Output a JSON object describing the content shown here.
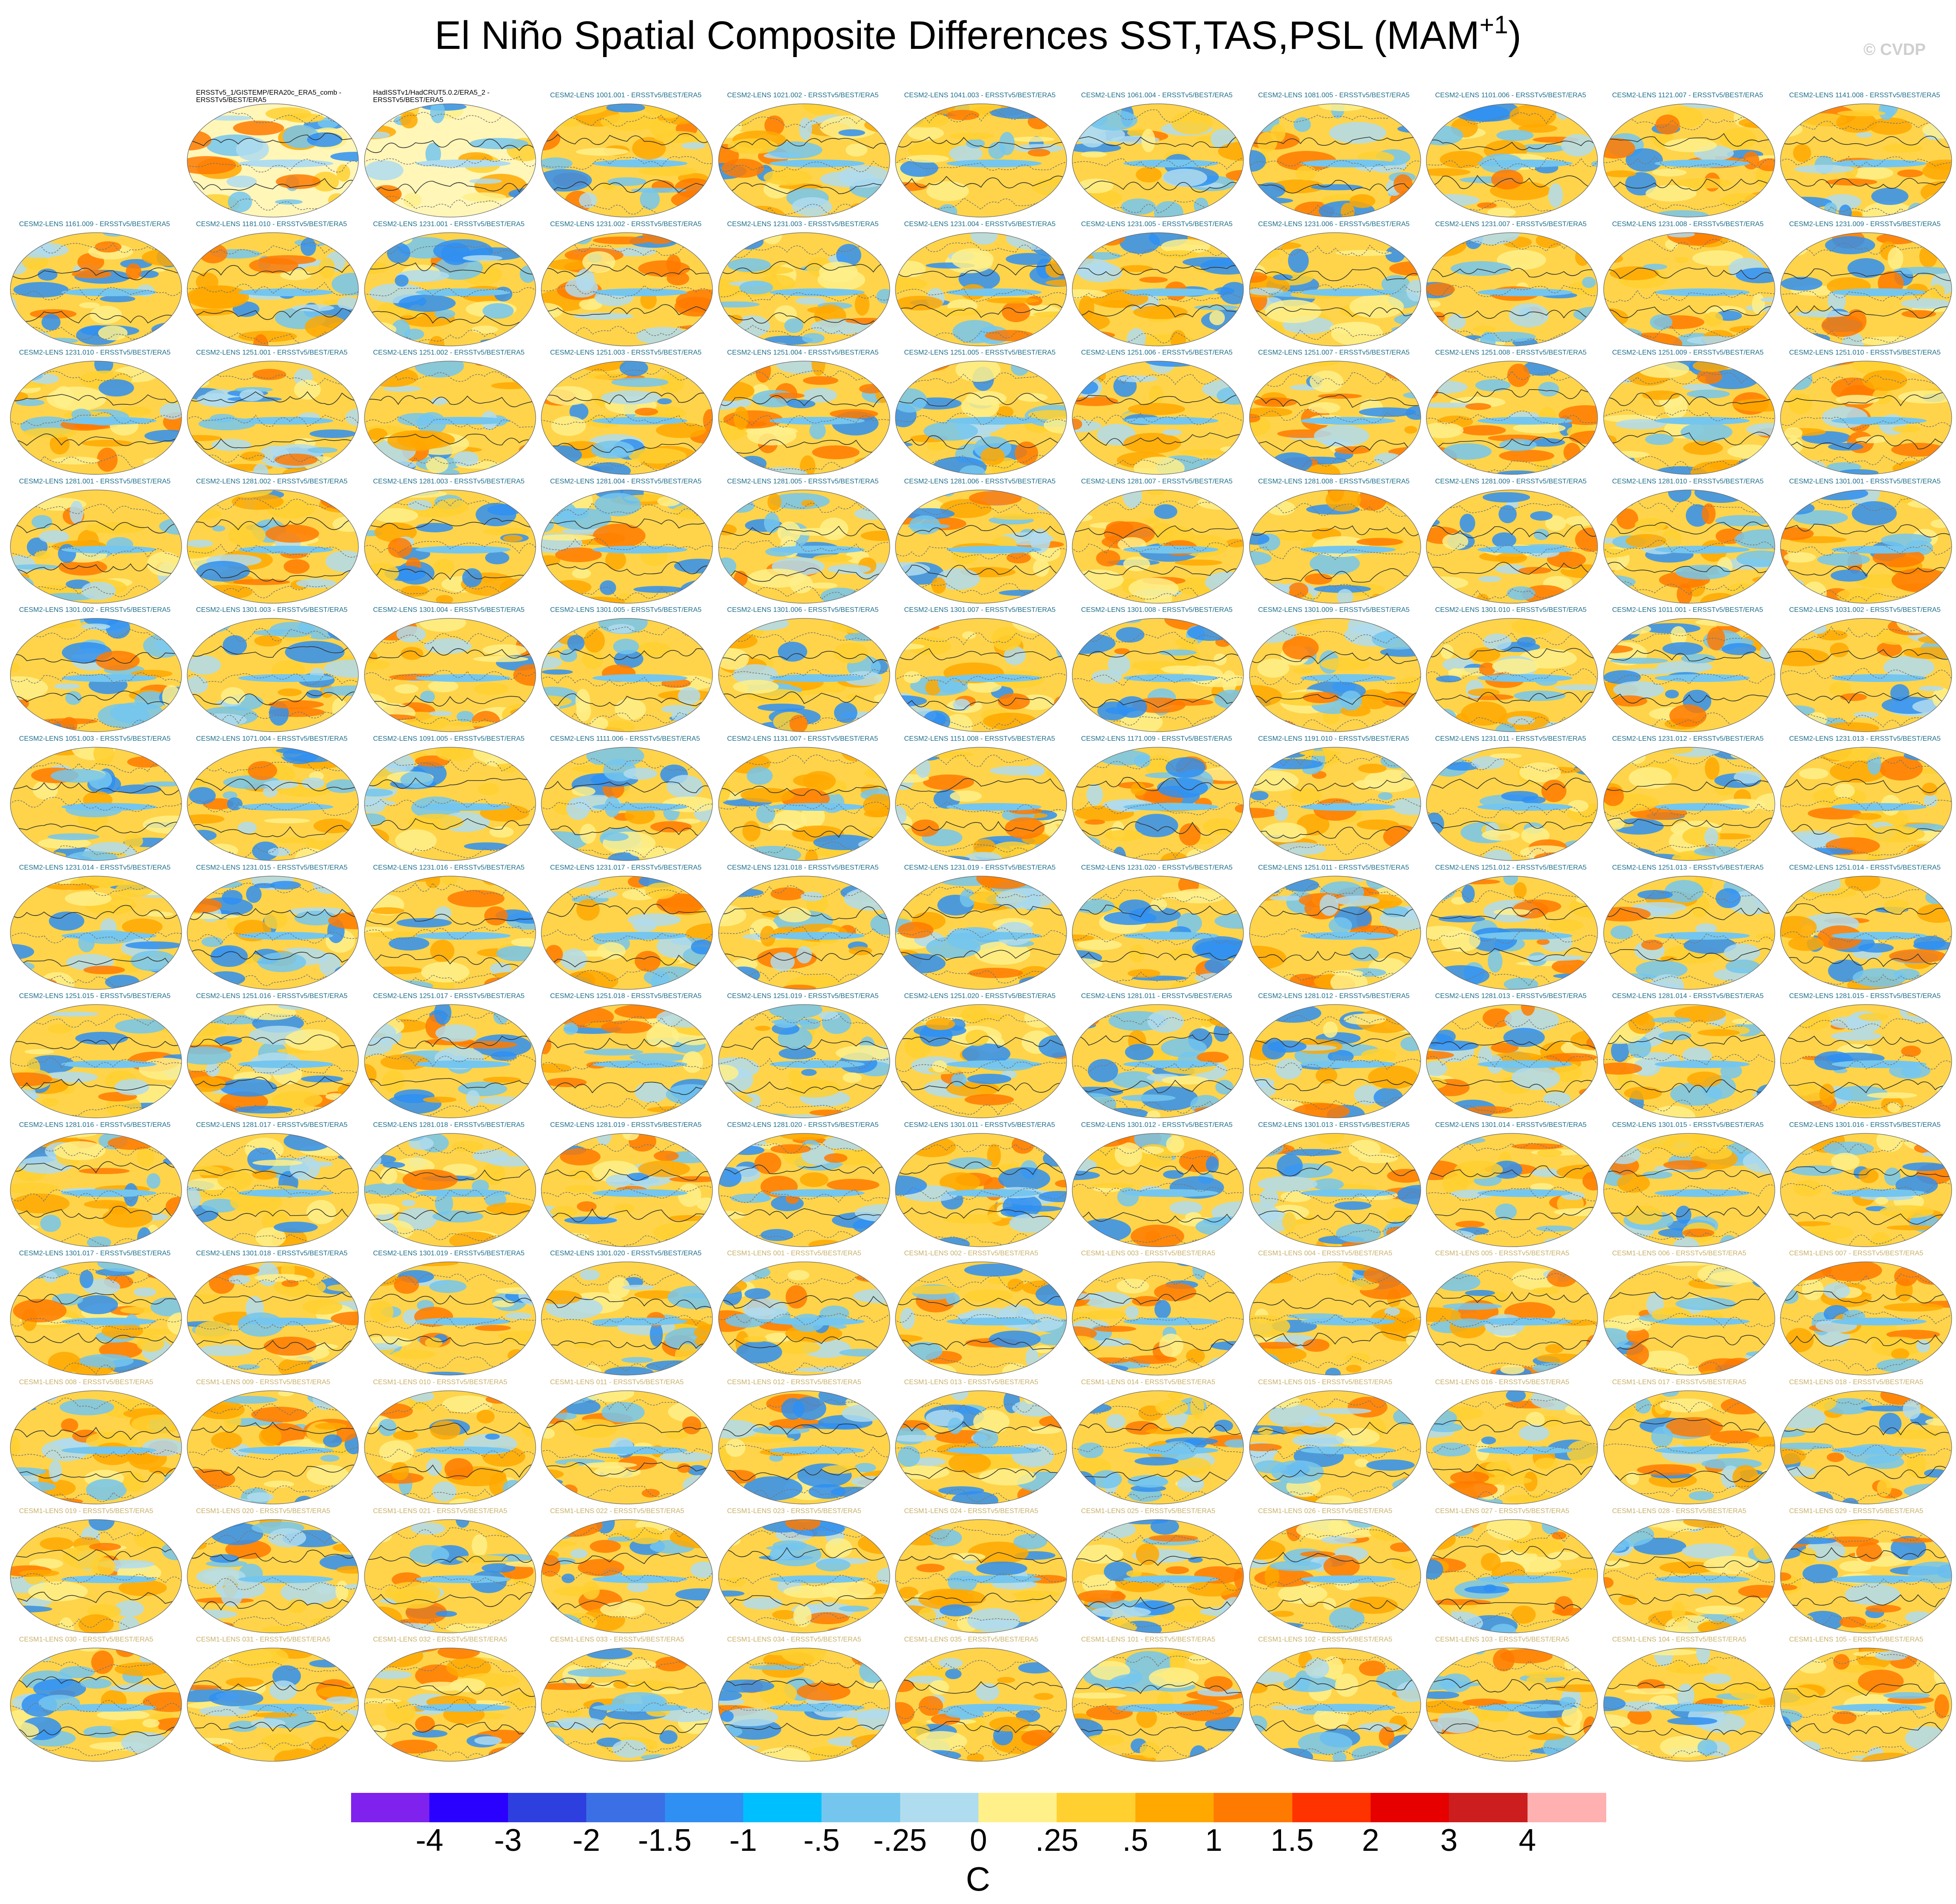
{
  "title": {
    "main": "El Niño Spatial Composite Differences SST,TAS,PSL (MAM",
    "superscript": "+1",
    "close": ")"
  },
  "credit": "© CVDP",
  "units": "C",
  "colorbar": {
    "labels": [
      "-4",
      "-3",
      "-2",
      "-1.5",
      "-1",
      "-.5",
      "-.25",
      "0",
      ".25",
      ".5",
      "1",
      "1.5",
      "2",
      "3",
      "4"
    ],
    "colors": [
      "#7f22ee",
      "#2a00ff",
      "#2e3fe0",
      "#3b6fe6",
      "#2f8ff2",
      "#00bfff",
      "#74c6ef",
      "#b0dcef",
      "#fff08a",
      "#ffd030",
      "#ffa800",
      "#ff7a00",
      "#ff3300",
      "#e60000",
      "#cc1e1e",
      "#ffb0b0"
    ]
  },
  "panels": [
    "",
    "ERSSTv5_1/GISTEMP/ERA20c_ERA5_comb - ERSSTv5/BEST/ERA5",
    "HadISSTv1/HadCRUT5.0.2/ERA5_2 - ERSSTv5/BEST/ERA5",
    "CESM2-LENS 1001.001 - ERSSTv5/BEST/ERA5",
    "CESM2-LENS 1021.002 - ERSSTv5/BEST/ERA5",
    "CESM2-LENS 1041.003 - ERSSTv5/BEST/ERA5",
    "CESM2-LENS 1061.004 - ERSSTv5/BEST/ERA5",
    "CESM2-LENS 1081.005 - ERSSTv5/BEST/ERA5",
    "CESM2-LENS 1101.006 - ERSSTv5/BEST/ERA5",
    "CESM2-LENS 1121.007 - ERSSTv5/BEST/ERA5",
    "CESM2-LENS 1141.008 - ERSSTv5/BEST/ERA5",
    "CESM2-LENS 1161.009 - ERSSTv5/BEST/ERA5",
    "CESM2-LENS 1181.010 - ERSSTv5/BEST/ERA5",
    "CESM2-LENS 1231.001 - ERSSTv5/BEST/ERA5",
    "CESM2-LENS 1231.002 - ERSSTv5/BEST/ERA5",
    "CESM2-LENS 1231.003 - ERSSTv5/BEST/ERA5",
    "CESM2-LENS 1231.004 - ERSSTv5/BEST/ERA5",
    "CESM2-LENS 1231.005 - ERSSTv5/BEST/ERA5",
    "CESM2-LENS 1231.006 - ERSSTv5/BEST/ERA5",
    "CESM2-LENS 1231.007 - ERSSTv5/BEST/ERA5",
    "CESM2-LENS 1231.008 - ERSSTv5/BEST/ERA5",
    "CESM2-LENS 1231.009 - ERSSTv5/BEST/ERA5",
    "CESM2-LENS 1231.010 - ERSSTv5/BEST/ERA5",
    "CESM2-LENS 1251.001 - ERSSTv5/BEST/ERA5",
    "CESM2-LENS 1251.002 - ERSSTv5/BEST/ERA5",
    "CESM2-LENS 1251.003 - ERSSTv5/BEST/ERA5",
    "CESM2-LENS 1251.004 - ERSSTv5/BEST/ERA5",
    "CESM2-LENS 1251.005 - ERSSTv5/BEST/ERA5",
    "CESM2-LENS 1251.006 - ERSSTv5/BEST/ERA5",
    "CESM2-LENS 1251.007 - ERSSTv5/BEST/ERA5",
    "CESM2-LENS 1251.008 - ERSSTv5/BEST/ERA5",
    "CESM2-LENS 1251.009 - ERSSTv5/BEST/ERA5",
    "CESM2-LENS 1251.010 - ERSSTv5/BEST/ERA5",
    "CESM2-LENS 1281.001 - ERSSTv5/BEST/ERA5",
    "CESM2-LENS 1281.002 - ERSSTv5/BEST/ERA5",
    "CESM2-LENS 1281.003 - ERSSTv5/BEST/ERA5",
    "CESM2-LENS 1281.004 - ERSSTv5/BEST/ERA5",
    "CESM2-LENS 1281.005 - ERSSTv5/BEST/ERA5",
    "CESM2-LENS 1281.006 - ERSSTv5/BEST/ERA5",
    "CESM2-LENS 1281.007 - ERSSTv5/BEST/ERA5",
    "CESM2-LENS 1281.008 - ERSSTv5/BEST/ERA5",
    "CESM2-LENS 1281.009 - ERSSTv5/BEST/ERA5",
    "CESM2-LENS 1281.010 - ERSSTv5/BEST/ERA5",
    "CESM2-LENS 1301.001 - ERSSTv5/BEST/ERA5",
    "CESM2-LENS 1301.002 - ERSSTv5/BEST/ERA5",
    "CESM2-LENS 1301.003 - ERSSTv5/BEST/ERA5",
    "CESM2-LENS 1301.004 - ERSSTv5/BEST/ERA5",
    "CESM2-LENS 1301.005 - ERSSTv5/BEST/ERA5",
    "CESM2-LENS 1301.006 - ERSSTv5/BEST/ERA5",
    "CESM2-LENS 1301.007 - ERSSTv5/BEST/ERA5",
    "CESM2-LENS 1301.008 - ERSSTv5/BEST/ERA5",
    "CESM2-LENS 1301.009 - ERSSTv5/BEST/ERA5",
    "CESM2-LENS 1301.010 - ERSSTv5/BEST/ERA5",
    "CESM2-LENS 1011.001 - ERSSTv5/BEST/ERA5",
    "CESM2-LENS 1031.002 - ERSSTv5/BEST/ERA5",
    "CESM2-LENS 1051.003 - ERSSTv5/BEST/ERA5",
    "CESM2-LENS 1071.004 - ERSSTv5/BEST/ERA5",
    "CESM2-LENS 1091.005 - ERSSTv5/BEST/ERA5",
    "CESM2-LENS 1111.006 - ERSSTv5/BEST/ERA5",
    "CESM2-LENS 1131.007 - ERSSTv5/BEST/ERA5",
    "CESM2-LENS 1151.008 - ERSSTv5/BEST/ERA5",
    "CESM2-LENS 1171.009 - ERSSTv5/BEST/ERA5",
    "CESM2-LENS 1191.010 - ERSSTv5/BEST/ERA5",
    "CESM2-LENS 1231.011 - ERSSTv5/BEST/ERA5",
    "CESM2-LENS 1231.012 - ERSSTv5/BEST/ERA5",
    "CESM2-LENS 1231.013 - ERSSTv5/BEST/ERA5",
    "CESM2-LENS 1231.014 - ERSSTv5/BEST/ERA5",
    "CESM2-LENS 1231.015 - ERSSTv5/BEST/ERA5",
    "CESM2-LENS 1231.016 - ERSSTv5/BEST/ERA5",
    "CESM2-LENS 1231.017 - ERSSTv5/BEST/ERA5",
    "CESM2-LENS 1231.018 - ERSSTv5/BEST/ERA5",
    "CESM2-LENS 1231.019 - ERSSTv5/BEST/ERA5",
    "CESM2-LENS 1231.020 - ERSSTv5/BEST/ERA5",
    "CESM2-LENS 1251.011 - ERSSTv5/BEST/ERA5",
    "CESM2-LENS 1251.012 - ERSSTv5/BEST/ERA5",
    "CESM2-LENS 1251.013 - ERSSTv5/BEST/ERA5",
    "CESM2-LENS 1251.014 - ERSSTv5/BEST/ERA5",
    "CESM2-LENS 1251.015 - ERSSTv5/BEST/ERA5",
    "CESM2-LENS 1251.016 - ERSSTv5/BEST/ERA5",
    "CESM2-LENS 1251.017 - ERSSTv5/BEST/ERA5",
    "CESM2-LENS 1251.018 - ERSSTv5/BEST/ERA5",
    "CESM2-LENS 1251.019 - ERSSTv5/BEST/ERA5",
    "CESM2-LENS 1251.020 - ERSSTv5/BEST/ERA5",
    "CESM2-LENS 1281.011 - ERSSTv5/BEST/ERA5",
    "CESM2-LENS 1281.012 - ERSSTv5/BEST/ERA5",
    "CESM2-LENS 1281.013 - ERSSTv5/BEST/ERA5",
    "CESM2-LENS 1281.014 - ERSSTv5/BEST/ERA5",
    "CESM2-LENS 1281.015 - ERSSTv5/BEST/ERA5",
    "CESM2-LENS 1281.016 - ERSSTv5/BEST/ERA5",
    "CESM2-LENS 1281.017 - ERSSTv5/BEST/ERA5",
    "CESM2-LENS 1281.018 - ERSSTv5/BEST/ERA5",
    "CESM2-LENS 1281.019 - ERSSTv5/BEST/ERA5",
    "CESM2-LENS 1281.020 - ERSSTv5/BEST/ERA5",
    "CESM2-LENS 1301.011 - ERSSTv5/BEST/ERA5",
    "CESM2-LENS 1301.012 - ERSSTv5/BEST/ERA5",
    "CESM2-LENS 1301.013 - ERSSTv5/BEST/ERA5",
    "CESM2-LENS 1301.014 - ERSSTv5/BEST/ERA5",
    "CESM2-LENS 1301.015 - ERSSTv5/BEST/ERA5",
    "CESM2-LENS 1301.016 - ERSSTv5/BEST/ERA5",
    "CESM2-LENS 1301.017 - ERSSTv5/BEST/ERA5",
    "CESM2-LENS 1301.018 - ERSSTv5/BEST/ERA5",
    "CESM2-LENS 1301.019 - ERSSTv5/BEST/ERA5",
    "CESM2-LENS 1301.020 - ERSSTv5/BEST/ERA5",
    "CESM1-LENS 001 - ERSSTv5/BEST/ERA5",
    "CESM1-LENS 002 - ERSSTv5/BEST/ERA5",
    "CESM1-LENS 003 - ERSSTv5/BEST/ERA5",
    "CESM1-LENS 004 - ERSSTv5/BEST/ERA5",
    "CESM1-LENS 005 - ERSSTv5/BEST/ERA5",
    "CESM1-LENS 006 - ERSSTv5/BEST/ERA5",
    "CESM1-LENS 007 - ERSSTv5/BEST/ERA5",
    "CESM1-LENS 008 - ERSSTv5/BEST/ERA5",
    "CESM1-LENS 009 - ERSSTv5/BEST/ERA5",
    "CESM1-LENS 010 - ERSSTv5/BEST/ERA5",
    "CESM1-LENS 011 - ERSSTv5/BEST/ERA5",
    "CESM1-LENS 012 - ERSSTv5/BEST/ERA5",
    "CESM1-LENS 013 - ERSSTv5/BEST/ERA5",
    "CESM1-LENS 014 - ERSSTv5/BEST/ERA5",
    "CESM1-LENS 015 - ERSSTv5/BEST/ERA5",
    "CESM1-LENS 016 - ERSSTv5/BEST/ERA5",
    "CESM1-LENS 017 - ERSSTv5/BEST/ERA5",
    "CESM1-LENS 018 - ERSSTv5/BEST/ERA5",
    "CESM1-LENS 019 - ERSSTv5/BEST/ERA5",
    "CESM1-LENS 020 - ERSSTv5/BEST/ERA5",
    "CESM1-LENS 021 - ERSSTv5/BEST/ERA5",
    "CESM1-LENS 022 - ERSSTv5/BEST/ERA5",
    "CESM1-LENS 023 - ERSSTv5/BEST/ERA5",
    "CESM1-LENS 024 - ERSSTv5/BEST/ERA5",
    "CESM1-LENS 025 - ERSSTv5/BEST/ERA5",
    "CESM1-LENS 026 - ERSSTv5/BEST/ERA5",
    "CESM1-LENS 027 - ERSSTv5/BEST/ERA5",
    "CESM1-LENS 028 - ERSSTv5/BEST/ERA5",
    "CESM1-LENS 029 - ERSSTv5/BEST/ERA5",
    "CESM1-LENS 030 - ERSSTv5/BEST/ERA5",
    "CESM1-LENS 031 - ERSSTv5/BEST/ERA5",
    "CESM1-LENS 032 - ERSSTv5/BEST/ERA5",
    "CESM1-LENS 033 - ERSSTv5/BEST/ERA5",
    "CESM1-LENS 034 - ERSSTv5/BEST/ERA5",
    "CESM1-LENS 035 - ERSSTv5/BEST/ERA5",
    "CESM1-LENS 101 - ERSSTv5/BEST/ERA5",
    "CESM1-LENS 102 - ERSSTv5/BEST/ERA5",
    "CESM1-LENS 103 - ERSSTv5/BEST/ERA5",
    "CESM1-LENS 104 - ERSSTv5/BEST/ERA5",
    "CESM1-LENS 105 - ERSSTv5/BEST/ERA5"
  ]
}
